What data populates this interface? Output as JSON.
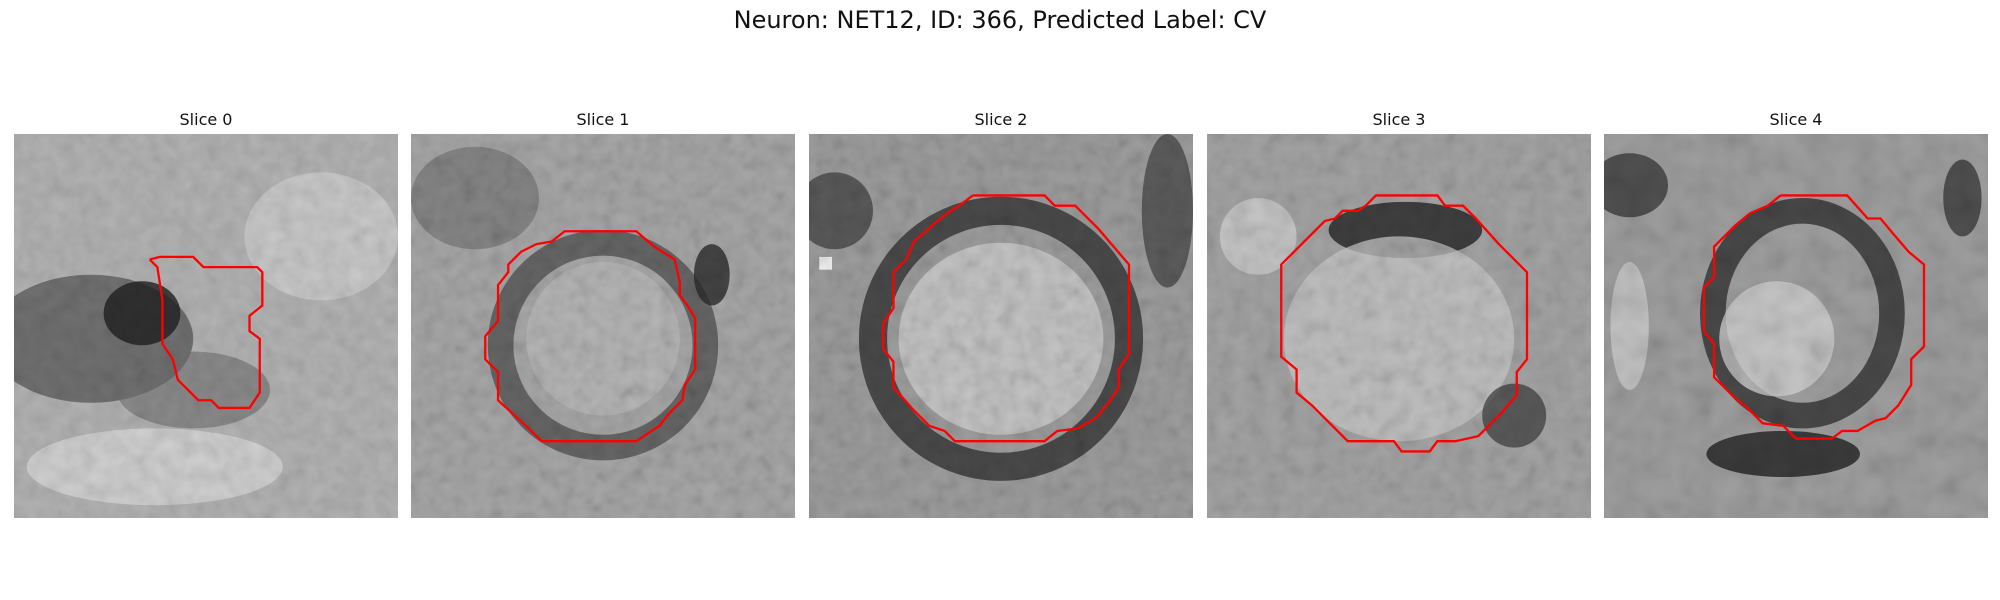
{
  "figure": {
    "title": "Neuron: NET12, ID: 366, Predicted Label: CV"
  },
  "slices": [
    {
      "label": "Slice 0"
    },
    {
      "label": "Slice 1"
    },
    {
      "label": "Slice 2"
    },
    {
      "label": "Slice 3"
    },
    {
      "label": "Slice 4"
    }
  ],
  "colors": {
    "contour": "#ff0000",
    "background": "#ffffff"
  }
}
